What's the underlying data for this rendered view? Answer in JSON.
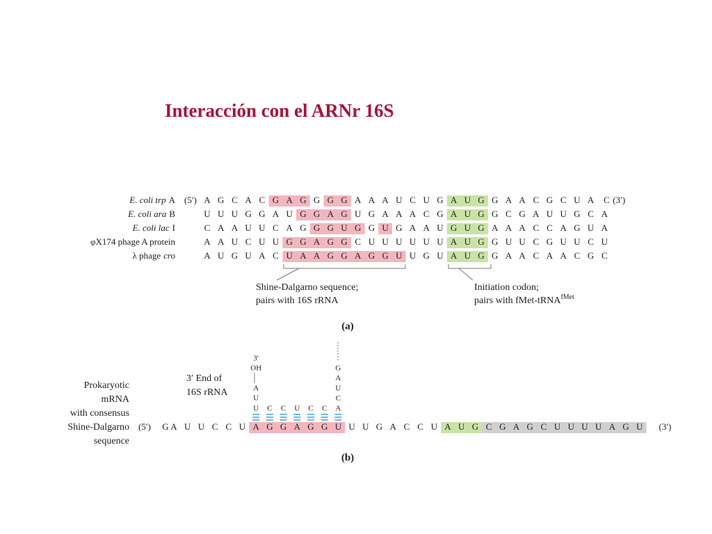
{
  "title": "Interacción con el ARNr 16S",
  "panel_a": {
    "rows": [
      {
        "label": [
          {
            "text": "E. coli trp",
            "italic": true
          },
          {
            "text": "A"
          }
        ],
        "prefix": "(5′)",
        "lead": "A",
        "segments": [
          {
            "letters": [
              "G",
              "C",
              "A",
              "C"
            ]
          },
          {
            "letters": [
              "G",
              "A",
              "G"
            ],
            "highlight": "#f3b6bf"
          },
          {
            "letters": [
              "G"
            ]
          },
          {
            "letters": [
              "G",
              "G"
            ],
            "highlight": "#f3b6bf"
          },
          {
            "letters": [
              "A",
              "A",
              "A",
              "U",
              "C",
              "U",
              "G"
            ]
          },
          {
            "letters": [
              "A",
              "U",
              "G"
            ],
            "highlight": "#c9e3a6"
          },
          {
            "letters": [
              "G",
              "A",
              "A",
              "C",
              "G",
              "C",
              "U",
              "A"
            ]
          }
        ],
        "tail": "C",
        "suffix": "(3′)"
      },
      {
        "label": [
          {
            "text": "E. coli ara",
            "italic": true
          },
          {
            "text": "B"
          }
        ],
        "segments": [
          {
            "letters": [
              "U",
              "U",
              "U",
              "G",
              "G",
              "A",
              "U"
            ]
          },
          {
            "letters": [
              "G",
              "G",
              "A",
              "G"
            ],
            "highlight": "#f3b6bf"
          },
          {
            "letters": [
              "U",
              "G",
              "A",
              "A",
              "A",
              "C",
              "G"
            ]
          },
          {
            "letters": [
              "A",
              "U",
              "G"
            ],
            "highlight": "#c9e3a6"
          },
          {
            "letters": [
              "G",
              "C",
              "G",
              "A",
              "U",
              "U",
              "G",
              "C",
              "A"
            ]
          }
        ]
      },
      {
        "label": [
          {
            "text": "E. coli lac",
            "italic": true
          },
          {
            "text": "I"
          }
        ],
        "segments": [
          {
            "letters": [
              "C",
              "A",
              "A",
              "U",
              "U",
              "C",
              "A",
              "G"
            ]
          },
          {
            "letters": [
              "G",
              "G",
              "U",
              "G"
            ],
            "highlight": "#f3b6bf"
          },
          {
            "letters": [
              "G"
            ]
          },
          {
            "letters": [
              "U"
            ],
            "highlight": "#f3b6bf"
          },
          {
            "letters": [
              "G",
              "A",
              "A",
              "U"
            ]
          },
          {
            "letters": [
              "G",
              "U",
              "G"
            ],
            "highlight": "#c9e3a6"
          },
          {
            "letters": [
              "A",
              "A",
              "A",
              "C",
              "C",
              "A",
              "G",
              "U",
              "A"
            ]
          }
        ]
      },
      {
        "label": [
          {
            "text": "φX174 phage A protein"
          }
        ],
        "segments": [
          {
            "letters": [
              "A",
              "A",
              "U",
              "C",
              "U",
              "U"
            ]
          },
          {
            "letters": [
              "G",
              "G",
              "A",
              "G",
              "G"
            ],
            "highlight": "#f3b6bf"
          },
          {
            "letters": [
              "C",
              "U",
              "U",
              "U",
              "U",
              "U",
              "U"
            ]
          },
          {
            "letters": [
              "A",
              "U",
              "G"
            ],
            "highlight": "#c9e3a6"
          },
          {
            "letters": [
              "G",
              "U",
              "U",
              "C",
              "G",
              "U",
              "U",
              "C",
              "U"
            ]
          }
        ]
      },
      {
        "label": [
          {
            "text": "λ phage"
          },
          {
            "text": "cro",
            "italic": true
          }
        ],
        "segments": [
          {
            "letters": [
              "A",
              "U",
              "G",
              "U",
              "A",
              "C"
            ]
          },
          {
            "letters": [
              "U",
              "A",
              "A",
              "G",
              "G",
              "A",
              "G",
              "G",
              "U"
            ],
            "highlight": "#f3b6bf"
          },
          {
            "letters": [
              "U",
              "G",
              "U"
            ]
          },
          {
            "letters": [
              "A",
              "U",
              "G"
            ],
            "highlight": "#c9e3a6"
          },
          {
            "letters": [
              "G",
              "A",
              "A",
              "C",
              "A",
              "A",
              "C",
              "G",
              "C"
            ]
          }
        ]
      }
    ],
    "notes": [
      {
        "lines": [
          "Shine-Dalgarno sequence;",
          "pairs with 16S rRNA"
        ]
      },
      {
        "lines": [
          "Initiation codon;",
          "pairs with fMet-tRNA"
        ],
        "sup": "fMet"
      }
    ],
    "caption": "(a)"
  },
  "panel_b": {
    "label": [
      "Prokaryotic",
      "mRNA",
      "with consensus",
      "Shine-Dalgarno",
      "sequence"
    ],
    "rrna_label": [
      "3′ End of",
      "16S rRNA"
    ],
    "rrna_left": [
      "3′",
      "OH",
      "A",
      "U"
    ],
    "rrna_pairs": [
      "U",
      "C",
      "C",
      "U",
      "C",
      "C",
      "A"
    ],
    "rrna_right": [
      "G",
      "A",
      "U",
      "C"
    ],
    "prefix": "(5′)",
    "lead": "G",
    "segments": [
      {
        "letters": [
          "A",
          "U",
          "U",
          "C",
          "C",
          "U"
        ]
      },
      {
        "letters": [
          "A",
          "G",
          "G",
          "A",
          "G",
          "G",
          "U"
        ],
        "highlight": "#f3b6bf"
      },
      {
        "letters": [
          "U",
          "U",
          "G",
          "A",
          "C",
          "C",
          "U"
        ]
      },
      {
        "letters": [
          "A",
          "U",
          "G"
        ],
        "highlight": "#c9e3a6"
      },
      {
        "letters": [
          "C",
          "G",
          "A",
          "G",
          "C",
          "U",
          "U",
          "U",
          "U",
          "A",
          "G",
          "U"
        ],
        "highlight": "#d0d0d0"
      }
    ],
    "suffix": "(3′)",
    "caption": "(b)"
  }
}
